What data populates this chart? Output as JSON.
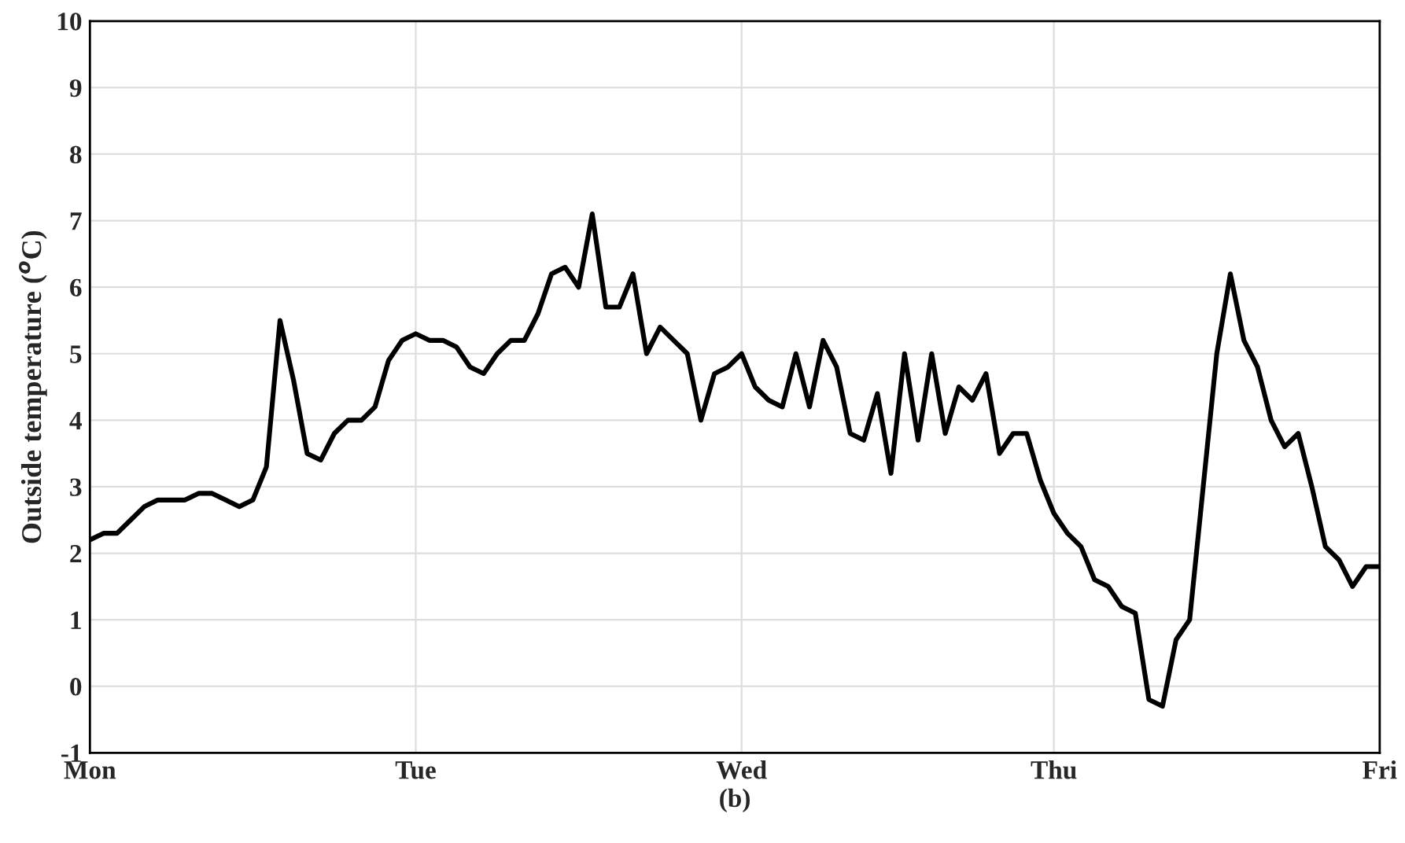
{
  "chart_data": {
    "type": "line",
    "xlabel": "(b)",
    "ylabel": "Outside temperature ($^{o}$C)",
    "categories": [
      "Mon",
      null,
      null,
      null,
      null,
      null,
      null,
      null,
      null,
      null,
      null,
      null,
      null,
      null,
      null,
      null,
      null,
      null,
      null,
      null,
      null,
      null,
      null,
      null,
      "Tue",
      null,
      null,
      null,
      null,
      null,
      null,
      null,
      null,
      null,
      null,
      null,
      null,
      null,
      null,
      null,
      null,
      null,
      null,
      null,
      null,
      null,
      null,
      null,
      "Wed",
      null,
      null,
      null,
      null,
      null,
      null,
      null,
      null,
      null,
      null,
      null,
      null,
      null,
      null,
      null,
      null,
      null,
      null,
      null,
      null,
      null,
      null,
      "Thu",
      null,
      null,
      null,
      null,
      null,
      null,
      null,
      null,
      null,
      null,
      null,
      null,
      null,
      null,
      null,
      null,
      null,
      null,
      null,
      null,
      null,
      null,
      null,
      "Fri"
    ],
    "ylim": [
      -1,
      10
    ],
    "yticks": [
      -1,
      0,
      1,
      2,
      3,
      4,
      5,
      6,
      7,
      8,
      9,
      10
    ],
    "grid": true,
    "marker": "none",
    "line_style": "solid",
    "series": [
      {
        "color": "#000000",
        "values": [
          2.2,
          2.3,
          2.3,
          2.5,
          2.7,
          2.8,
          2.8,
          2.8,
          2.9,
          2.9,
          2.8,
          2.7,
          2.8,
          3.3,
          5.5,
          4.6,
          3.5,
          3.4,
          3.8,
          4.0,
          4.0,
          4.2,
          4.9,
          5.2,
          5.3,
          5.2,
          5.2,
          5.1,
          4.8,
          4.7,
          5.0,
          5.2,
          5.2,
          5.6,
          6.2,
          6.3,
          6.0,
          7.1,
          5.7,
          5.7,
          6.2,
          5.0,
          5.4,
          5.2,
          5.0,
          4.0,
          4.7,
          4.8,
          5.0,
          4.5,
          4.3,
          4.2,
          5.0,
          4.2,
          5.2,
          4.8,
          3.8,
          3.7,
          4.4,
          3.2,
          5.0,
          3.7,
          5.0,
          3.8,
          4.5,
          4.3,
          4.7,
          3.5,
          3.8,
          3.8,
          3.1,
          2.6,
          2.3,
          2.1,
          1.6,
          1.5,
          1.2,
          1.1,
          -0.2,
          -0.3,
          0.7,
          1.0,
          3.0,
          5.0,
          6.2,
          5.2,
          4.8,
          4.0,
          3.6,
          3.8,
          3.0,
          2.1,
          1.9,
          1.5,
          1.8,
          1.8
        ]
      }
    ]
  }
}
